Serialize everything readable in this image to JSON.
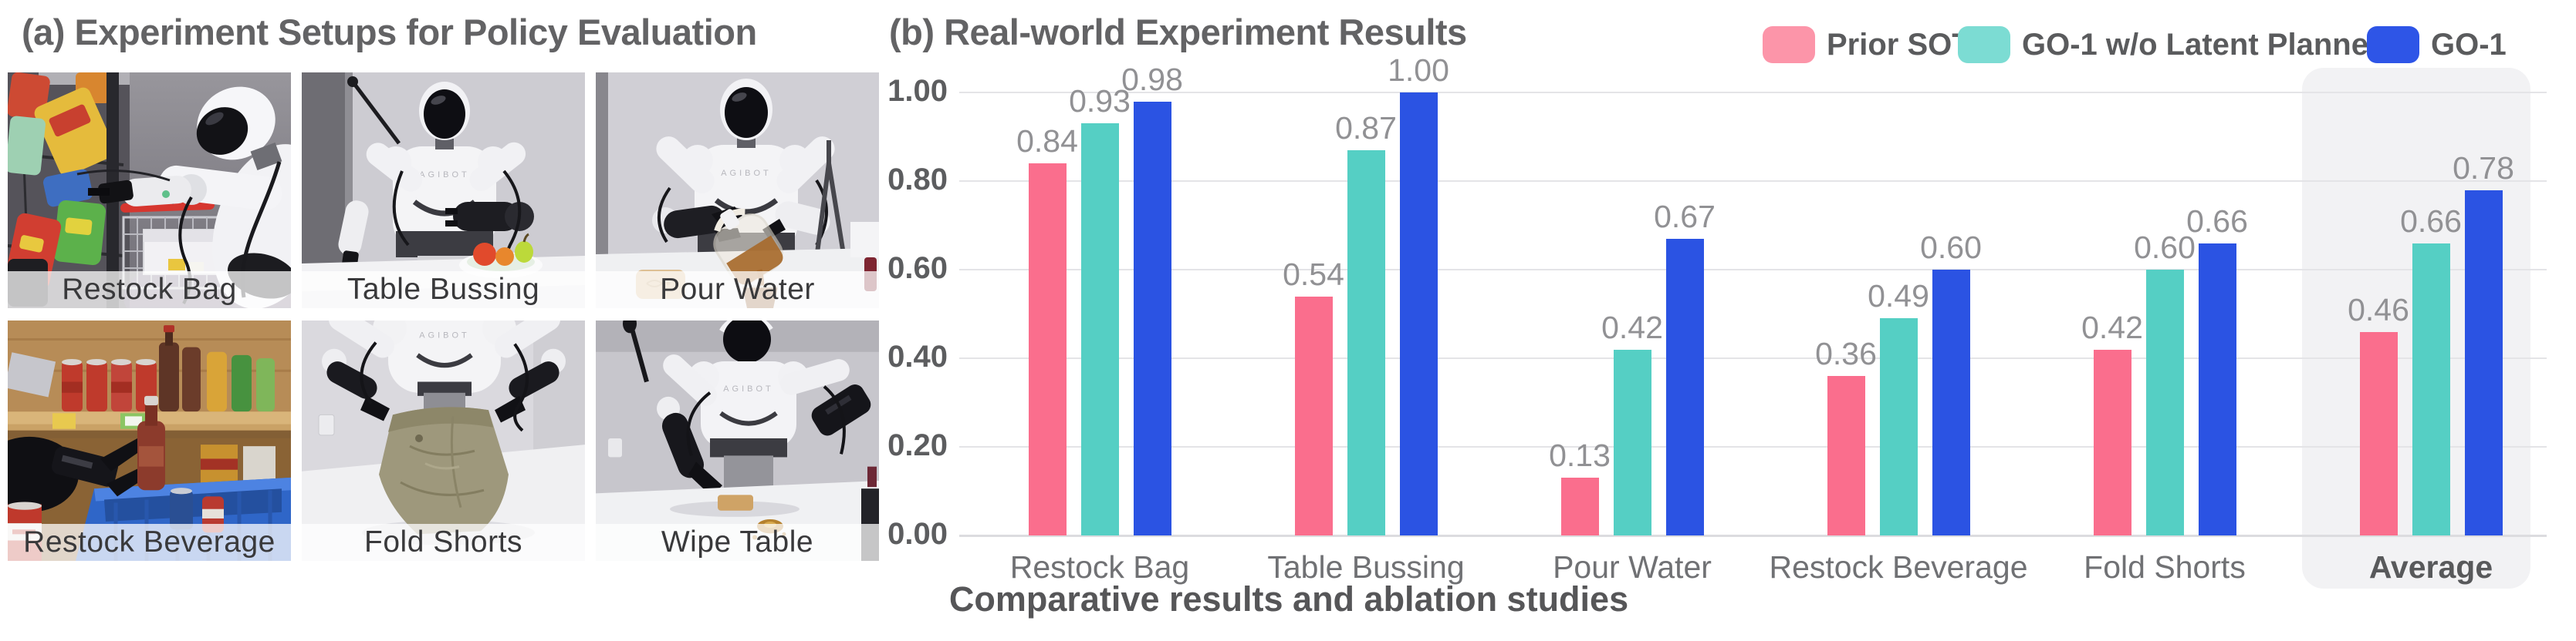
{
  "panel_a": {
    "title": "(a) Experiment Setups for Policy Evaluation"
  },
  "panel_b": {
    "title": "(b) Real-world Experiment Results"
  },
  "photos": [
    {
      "label": "Restock Bag",
      "scene": "robot-restocking-snack-bags-near-shopping-cart"
    },
    {
      "label": "Table Bussing",
      "scene": "robot-clearing-table-with-fruit-bowl"
    },
    {
      "label": "Pour Water",
      "scene": "robot-pouring-tea-from-kettle-into-cup"
    },
    {
      "label": "Restock Beverage",
      "scene": "robot-moving-bottles-between-shelf-and-blue-crate"
    },
    {
      "label": "Fold Shorts",
      "scene": "robot-folding-khaki-shorts-on-table"
    },
    {
      "label": "Wipe Table",
      "scene": "robot-wiping-spill-with-sponge"
    }
  ],
  "robot_brand": "AGIBOT",
  "chart_data": {
    "type": "bar",
    "title": "(b) Real-world Experiment Results",
    "categories": [
      "Restock Bag",
      "Table Bussing",
      "Pour Water",
      "Restock Beverage",
      "Fold Shorts",
      "Average"
    ],
    "series": [
      {
        "name": "Prior SOTA",
        "color": "#FA6E8D",
        "legend_color": "#FC95A9",
        "values": [
          0.84,
          0.54,
          0.13,
          0.36,
          0.42,
          0.46
        ]
      },
      {
        "name": "GO-1 w/o Latent Planner",
        "color": "#55CFC4",
        "legend_color": "#7CDCD3",
        "values": [
          0.93,
          0.87,
          0.42,
          0.49,
          0.6,
          0.66
        ]
      },
      {
        "name": "GO-1",
        "color": "#2B53E3",
        "legend_color": "#2E55E7",
        "values": [
          0.98,
          1.0,
          0.67,
          0.6,
          0.66,
          0.78
        ]
      }
    ],
    "ylim": [
      0,
      1.0
    ],
    "yticks": [
      {
        "label": "0.00",
        "value": 0.0
      },
      {
        "label": "0.20",
        "value": 0.2
      },
      {
        "label": "0.40",
        "value": 0.4
      },
      {
        "label": "0.60",
        "value": 0.6
      },
      {
        "label": "0.80",
        "value": 0.8
      },
      {
        "label": "1.00",
        "value": 1.0
      }
    ],
    "grid": true,
    "legend_position": "top-right",
    "value_label_format": "two-decimals",
    "highlight_category": "Average",
    "xlabel": "Comparative results and ablation studies"
  }
}
